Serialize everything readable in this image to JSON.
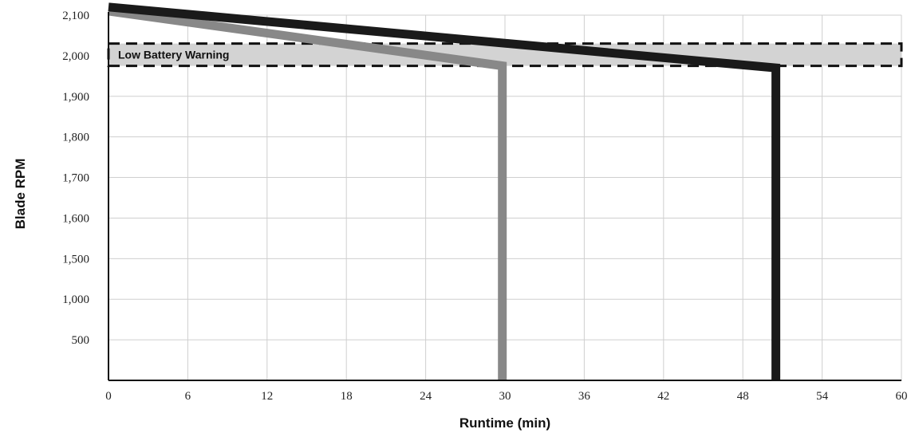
{
  "chart_data": {
    "type": "line",
    "title": "",
    "xlabel": "Runtime (min)",
    "ylabel": "Blade RPM",
    "x_ticks": [
      0,
      6,
      12,
      18,
      24,
      30,
      36,
      42,
      48,
      54,
      60
    ],
    "y_ticks": [
      "500",
      "1,000",
      "1,500",
      "1,600",
      "1,700",
      "1,800",
      "1,900",
      "2,000",
      "2,100"
    ],
    "xlim": [
      0,
      60
    ],
    "grid": true,
    "legend": "none",
    "series": [
      {
        "color": "#888888",
        "points": [
          {
            "x": 0,
            "y": "2,110"
          },
          {
            "x": 29.8,
            "y": "1,975"
          },
          {
            "x": 29.8,
            "y": "below 500"
          }
        ]
      },
      {
        "color": "#1a1a1a",
        "points": [
          {
            "x": 0,
            "y": "2,120"
          },
          {
            "x": 50.5,
            "y": "1,970"
          },
          {
            "x": 50.5,
            "y": "below 500"
          }
        ]
      }
    ],
    "annotations": [
      {
        "type": "band",
        "label": "Low Battery Warning",
        "y_from": "1,975",
        "y_to": "2,030",
        "fill": "#d3d3d3",
        "border": "dashed"
      }
    ]
  }
}
